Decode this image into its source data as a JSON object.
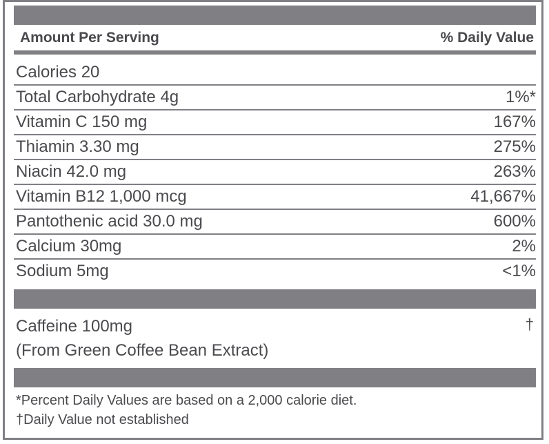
{
  "header": {
    "amount_label": "Amount Per Serving",
    "dv_label": "% Daily Value"
  },
  "rows": [
    {
      "name": "Calories 20",
      "value": ""
    },
    {
      "name": "Total Carbohydrate 4g",
      "value": "1%*"
    },
    {
      "name": "Vitamin C 150 mg",
      "value": "167%"
    },
    {
      "name": "Thiamin 3.30 mg",
      "value": "275%"
    },
    {
      "name": "Niacin 42.0 mg",
      "value": "263%"
    },
    {
      "name": "Vitamin B12 1,000 mcg",
      "value": "41,667%"
    },
    {
      "name": "Pantothenic acid 30.0 mg",
      "value": "600%"
    },
    {
      "name": "Calcium 30mg",
      "value": "2%"
    },
    {
      "name": "Sodium 5mg",
      "value": "<1%"
    }
  ],
  "caffeine": {
    "line1": "Caffeine 100mg",
    "line2": "(From Green Coffee Bean Extract)",
    "mark": "†"
  },
  "footnotes": {
    "percent_note": "*Percent Daily Values are based on a 2,000 calorie diet.",
    "dagger_note": "†Daily Value not established"
  }
}
